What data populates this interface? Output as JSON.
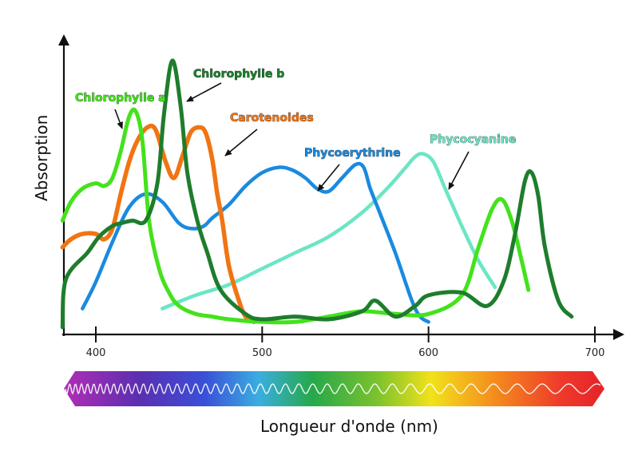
{
  "chart_data": {
    "type": "line",
    "title": "",
    "xlabel": "Longueur d'onde (nm)",
    "ylabel": "Absorption",
    "xlim": [
      380,
      710
    ],
    "ylim": [
      0,
      1
    ],
    "x_ticks": [
      400,
      500,
      600,
      700
    ],
    "x_tick_labels": [
      "400",
      "500",
      "600",
      "700"
    ],
    "grid": false,
    "legend": "labels on curves with arrows",
    "spectrum_bar": {
      "from_nm": 380,
      "to_nm": 710
    },
    "series": [
      {
        "name": "Chlorophylle a",
        "color": "#44e21c",
        "x": [
          380,
          385,
          392,
          400,
          405,
          410,
          415,
          420,
          424,
          428,
          432,
          438,
          444,
          450,
          460,
          470,
          480,
          500,
          520,
          540,
          560,
          580,
          600,
          620,
          630,
          638,
          644,
          650,
          656,
          660
        ],
        "values": [
          0.4,
          0.47,
          0.52,
          0.54,
          0.53,
          0.56,
          0.66,
          0.79,
          0.81,
          0.7,
          0.4,
          0.22,
          0.13,
          0.08,
          0.05,
          0.04,
          0.03,
          0.02,
          0.02,
          0.04,
          0.06,
          0.05,
          0.05,
          0.12,
          0.3,
          0.44,
          0.48,
          0.4,
          0.25,
          0.14
        ]
      },
      {
        "name": "Chlorophylle b",
        "color": "#1e7d2c",
        "x": [
          380,
          382,
          395,
          402,
          410,
          415,
          422,
          430,
          437,
          441,
          446,
          451,
          455,
          461,
          467,
          475,
          490,
          500,
          520,
          540,
          560,
          568,
          580,
          592,
          600,
          620,
          635,
          645,
          652,
          658,
          662,
          666,
          670,
          678,
          686
        ],
        "values": [
          0,
          0.18,
          0.28,
          0.34,
          0.38,
          0.39,
          0.4,
          0.4,
          0.54,
          0.8,
          1.0,
          0.83,
          0.58,
          0.4,
          0.28,
          0.14,
          0.05,
          0.03,
          0.04,
          0.03,
          0.06,
          0.1,
          0.04,
          0.08,
          0.12,
          0.13,
          0.08,
          0.17,
          0.35,
          0.55,
          0.58,
          0.49,
          0.3,
          0.1,
          0.04
        ]
      },
      {
        "name": "Carotenoides",
        "color": "#f17413",
        "x": [
          380,
          385,
          392,
          400,
          405,
          410,
          415,
          420,
          425,
          431,
          436,
          442,
          447,
          452,
          457,
          462,
          466,
          470,
          473,
          476,
          480,
          486,
          490,
          495
        ],
        "values": [
          0.3,
          0.33,
          0.35,
          0.35,
          0.33,
          0.37,
          0.5,
          0.62,
          0.7,
          0.75,
          0.74,
          0.62,
          0.56,
          0.64,
          0.73,
          0.75,
          0.73,
          0.63,
          0.5,
          0.4,
          0.23,
          0.1,
          0.04,
          0.02
        ]
      },
      {
        "name": "Phycoerythrine",
        "color": "#1a8ae0",
        "x": [
          392,
          400,
          410,
          420,
          430,
          440,
          450,
          458,
          465,
          470,
          480,
          490,
          500,
          510,
          518,
          526,
          533,
          540,
          548,
          556,
          561,
          565,
          570,
          580,
          590,
          595,
          600
        ],
        "values": [
          0.07,
          0.17,
          0.32,
          0.45,
          0.5,
          0.47,
          0.39,
          0.37,
          0.38,
          0.41,
          0.46,
          0.53,
          0.58,
          0.6,
          0.59,
          0.56,
          0.52,
          0.51,
          0.56,
          0.61,
          0.6,
          0.52,
          0.44,
          0.28,
          0.1,
          0.04,
          0.02
        ]
      },
      {
        "name": "Phycocyanine",
        "color": "#6be6c5",
        "x": [
          440,
          460,
          480,
          500,
          520,
          540,
          560,
          575,
          585,
          592,
          597,
          603,
          610,
          620,
          630,
          640
        ],
        "values": [
          0.07,
          0.12,
          0.16,
          0.22,
          0.28,
          0.34,
          0.43,
          0.52,
          0.59,
          0.64,
          0.65,
          0.62,
          0.52,
          0.38,
          0.25,
          0.15
        ]
      }
    ],
    "annotations": [
      {
        "text": "Chlorophylle a",
        "color": "#44e21c",
        "target_series": "Chlorophylle a"
      },
      {
        "text": "Chlorophylle b",
        "color": "#1e7d2c",
        "target_series": "Chlorophylle b"
      },
      {
        "text": "Carotenoides",
        "color": "#f17413",
        "target_series": "Carotenoides"
      },
      {
        "text": "Phycoerythrine",
        "color": "#1a8ae0",
        "target_series": "Phycoerythrine"
      },
      {
        "text": "Phycocyanine",
        "color": "#6be6c5",
        "target_series": "Phycocyanine"
      }
    ]
  }
}
